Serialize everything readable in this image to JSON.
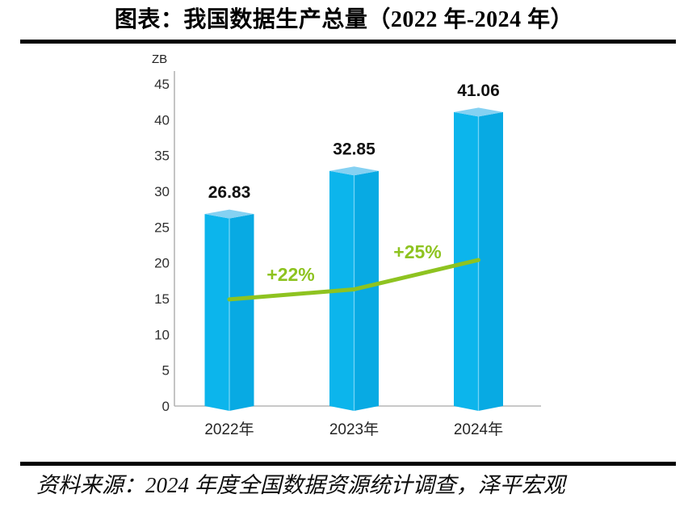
{
  "page": {
    "title": "图表：我国数据生产总量（2022 年-2024 年）",
    "source": "资料来源：2024 年度全国数据资源统计调查，泽平宏观"
  },
  "chart_data": {
    "type": "bar",
    "title": "图表：我国数据生产总量（2022 年-2024 年）",
    "unit_label": "ZB",
    "categories": [
      "2022年",
      "2023年",
      "2024年"
    ],
    "values": [
      26.83,
      32.85,
      41.06
    ],
    "value_labels": [
      "26.83",
      "32.85",
      "41.06"
    ],
    "growth_labels": [
      "+22%",
      "+25%"
    ],
    "growth_percent": [
      22,
      25
    ],
    "growth_line_y_zb": [
      14.9,
      16.3,
      20.4
    ],
    "ylim": [
      0,
      45
    ],
    "ytick_step": 5,
    "yticks": [
      0,
      5,
      10,
      15,
      20,
      25,
      30,
      35,
      40,
      45
    ],
    "grid": false,
    "legend": "none",
    "colors": {
      "bar_front_left": "#0cb5ec",
      "bar_front_right": "#08aae3",
      "bar_top": "#85d1f2",
      "bar_edge_highlight": "#7fd9f7",
      "growth_line": "#8ec320",
      "axis_line": "#c4c4c4",
      "baseline": "#b5b5b5",
      "tick_text": "#2f2f2f",
      "value_text": "#111111"
    }
  }
}
